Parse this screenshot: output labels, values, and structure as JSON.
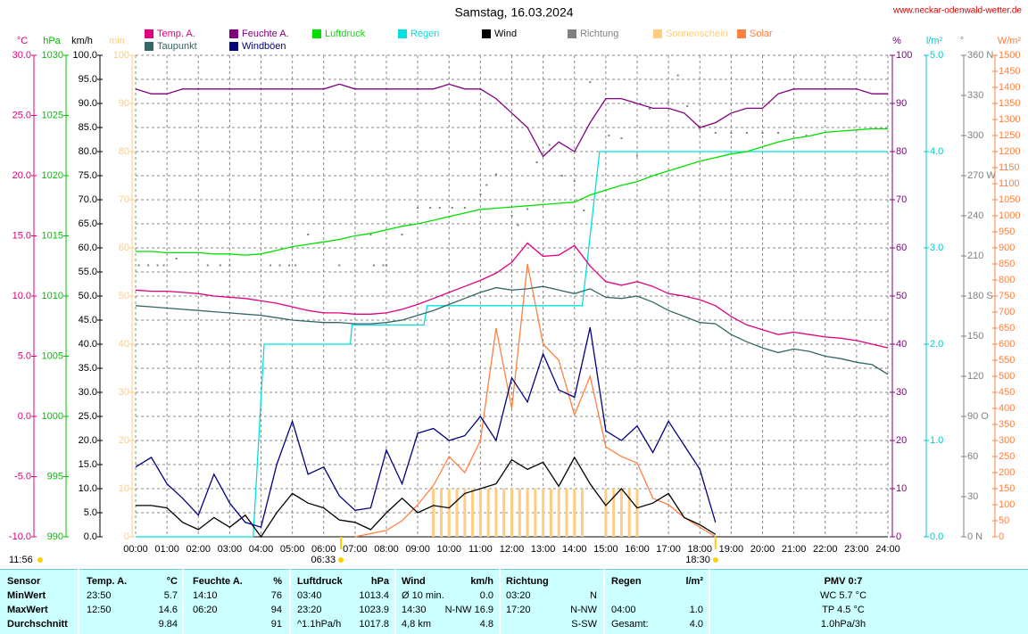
{
  "chart_data": {
    "type": "line",
    "title": "Samstag, 16.03.2024",
    "source": "www.neckar-odenwald-wetter.de",
    "grid": true,
    "xlim": [
      0,
      24
    ],
    "xticks": [
      {
        "value": 0,
        "label": "00:00"
      },
      {
        "value": 1,
        "label": "01:00"
      },
      {
        "value": 2,
        "label": "02:00"
      },
      {
        "value": 3,
        "label": "03:00"
      },
      {
        "value": 4,
        "label": "04:00"
      },
      {
        "value": 5,
        "label": "05:00"
      },
      {
        "value": 6,
        "label": "06:00"
      },
      {
        "value": 7,
        "label": "07:00"
      },
      {
        "value": 8,
        "label": "08:00"
      },
      {
        "value": 9,
        "label": "09:00"
      },
      {
        "value": 10,
        "label": "10:00"
      },
      {
        "value": 11,
        "label": "11:00"
      },
      {
        "value": 12,
        "label": "12:00"
      },
      {
        "value": 13,
        "label": "13:00"
      },
      {
        "value": 14,
        "label": "14:00"
      },
      {
        "value": 15,
        "label": "15:00"
      },
      {
        "value": 16,
        "label": "16:00"
      },
      {
        "value": 17,
        "label": "17:00"
      },
      {
        "value": 18,
        "label": "18:00"
      },
      {
        "value": 19,
        "label": "19:00"
      },
      {
        "value": 20,
        "label": "20:00"
      },
      {
        "value": 21,
        "label": "21:00"
      },
      {
        "value": 22,
        "label": "22:00"
      },
      {
        "value": 23,
        "label": "23:00"
      },
      {
        "value": 24,
        "label": "24:00"
      }
    ],
    "annotations": [
      {
        "label": "06:33",
        "x": 6.55
      },
      {
        "label": "18:30",
        "x": 18.5
      },
      {
        "label": "11:56"
      }
    ],
    "axes": [
      {
        "label": "°C",
        "color": "#e0007f",
        "lim": [
          -10,
          30
        ],
        "ticks": [
          {
            "value": -10,
            "label": "-10.0"
          },
          {
            "value": -5,
            "label": "-5.0"
          },
          {
            "value": 0,
            "label": "0.0"
          },
          {
            "value": 5,
            "label": "5.0"
          },
          {
            "value": 10,
            "label": "10.0"
          },
          {
            "value": 15,
            "label": "15.0"
          },
          {
            "value": 20,
            "label": "20.0"
          },
          {
            "value": 25,
            "label": "25.0"
          },
          {
            "value": 30,
            "label": "30.0"
          }
        ]
      },
      {
        "label": "hPa",
        "color": "#00c000",
        "lim": [
          990,
          1030
        ],
        "ticks": [
          990,
          995,
          1000,
          1005,
          1010,
          1015,
          1020,
          1025,
          1030
        ]
      },
      {
        "label": "km/h",
        "color": "#000000",
        "grid": true,
        "lim": [
          0,
          100
        ],
        "ticks": [
          {
            "value": 0,
            "label": "0.0"
          },
          {
            "value": 5,
            "label": "5.0"
          },
          {
            "value": 10,
            "label": "10.0"
          },
          {
            "value": 15,
            "label": "15.0"
          },
          {
            "value": 20,
            "label": "20.0"
          },
          {
            "value": 25,
            "label": "25.0"
          },
          {
            "value": 30,
            "label": "30.0"
          },
          {
            "value": 35,
            "label": "35.0"
          },
          {
            "value": 40,
            "label": "40.0"
          },
          {
            "value": 45,
            "label": "45.0"
          },
          {
            "value": 50,
            "label": "50.0"
          },
          {
            "value": 55,
            "label": "55.0"
          },
          {
            "value": 60,
            "label": "60.0"
          },
          {
            "value": 65,
            "label": "65.0"
          },
          {
            "value": 70,
            "label": "70.0"
          },
          {
            "value": 75,
            "label": "75.0"
          },
          {
            "value": 80,
            "label": "80.0"
          },
          {
            "value": 85,
            "label": "85.0"
          },
          {
            "value": 90,
            "label": "90.0"
          },
          {
            "value": 95,
            "label": "95.0"
          },
          {
            "value": 100,
            "label": "100.0"
          }
        ]
      },
      {
        "label": "min",
        "color": "#ffcc80",
        "lim": [
          0,
          100
        ],
        "ticks": [
          0,
          10,
          20,
          30,
          40,
          50,
          60,
          70,
          80,
          90,
          100
        ]
      },
      {
        "label": "%",
        "color": "#800080",
        "lim": [
          0,
          100
        ],
        "ticks": [
          0,
          10,
          20,
          30,
          40,
          50,
          60,
          70,
          80,
          90,
          100
        ]
      },
      {
        "label": "l/m²",
        "color": "#00cccc",
        "lim": [
          0,
          5
        ],
        "ticks": [
          {
            "value": 0,
            "label": "0.0"
          },
          {
            "value": 1,
            "label": "1.0"
          },
          {
            "value": 2,
            "label": "2.0"
          },
          {
            "value": 3,
            "label": "3.0"
          },
          {
            "value": 4,
            "label": "4.0"
          },
          {
            "value": 5,
            "label": "5.0"
          }
        ]
      },
      {
        "label": "°",
        "color": "#808080",
        "lim": [
          0,
          360
        ],
        "ticks": [
          {
            "value": 0,
            "label": "0 N"
          },
          30,
          60,
          {
            "value": 90,
            "label": "90 O"
          },
          120,
          150,
          {
            "value": 180,
            "label": "180 S"
          },
          210,
          240,
          {
            "value": 270,
            "label": "270 W"
          },
          300,
          330,
          {
            "value": 360,
            "label": "360 N"
          }
        ]
      },
      {
        "label": "W/m²",
        "color": "#ff8040",
        "lim": [
          0,
          1500
        ],
        "ticks": [
          0,
          50,
          100,
          150,
          200,
          250,
          300,
          350,
          400,
          450,
          500,
          550,
          600,
          650,
          700,
          750,
          800,
          850,
          900,
          950,
          1000,
          1050,
          1100,
          1150,
          1200,
          1250,
          1300,
          1350,
          1400,
          1450,
          1500
        ]
      }
    ],
    "x": [
      0,
      0.5,
      1,
      1.5,
      2,
      2.5,
      3,
      3.5,
      4,
      4.5,
      5,
      5.5,
      6,
      6.5,
      7,
      7.5,
      8,
      8.5,
      9,
      9.5,
      10,
      10.5,
      11,
      11.5,
      12,
      12.5,
      13,
      13.5,
      14,
      14.5,
      15,
      15.5,
      16,
      16.5,
      17,
      17.5,
      18,
      18.5,
      19,
      19.5,
      20,
      20.5,
      21,
      21.5,
      22,
      22.5,
      23,
      23.5,
      24
    ],
    "series": [
      {
        "name": "Temp. A.",
        "color": "#e0007f",
        "axis": 0,
        "kind": "line",
        "values": [
          10.5,
          10.4,
          10.4,
          10.3,
          10.2,
          10.0,
          9.9,
          9.8,
          9.6,
          9.4,
          9.1,
          8.8,
          8.6,
          8.6,
          8.5,
          8.5,
          8.6,
          8.9,
          9.3,
          9.8,
          10.3,
          10.8,
          11.3,
          11.9,
          12.8,
          14.4,
          13.3,
          13.4,
          14.2,
          12.5,
          11.2,
          10.9,
          11.2,
          10.8,
          10.2,
          10.0,
          9.7,
          9.2,
          8.3,
          7.6,
          7.2,
          6.8,
          7.0,
          6.8,
          6.6,
          6.5,
          6.3,
          6.0,
          5.7
        ]
      },
      {
        "name": "Feuchte A.",
        "color": "#800080",
        "axis": 4,
        "kind": "line",
        "values": [
          93,
          92,
          92,
          93,
          93,
          93,
          93,
          93,
          93,
          93,
          93,
          93,
          93,
          94,
          93,
          93,
          93,
          93,
          93,
          93,
          94,
          93,
          93,
          91,
          88,
          85,
          79,
          82,
          80,
          86,
          91,
          91,
          90,
          89,
          89,
          88,
          85,
          86,
          88,
          89,
          89,
          92,
          93,
          93,
          93,
          93,
          93,
          92,
          92
        ]
      },
      {
        "name": "Luftdruck",
        "color": "#00e000",
        "axis": 1,
        "kind": "line",
        "values": [
          1013.7,
          1013.7,
          1013.6,
          1013.6,
          1013.6,
          1013.5,
          1013.5,
          1013.4,
          1013.5,
          1013.8,
          1014.1,
          1014.3,
          1014.5,
          1014.7,
          1015.0,
          1015.2,
          1015.5,
          1015.8,
          1016.0,
          1016.3,
          1016.6,
          1016.9,
          1017.2,
          1017.3,
          1017.4,
          1017.5,
          1017.6,
          1017.7,
          1017.8,
          1018.4,
          1018.8,
          1019.2,
          1019.5,
          1020.0,
          1020.4,
          1020.8,
          1021.2,
          1021.5,
          1021.8,
          1022.0,
          1022.4,
          1022.8,
          1023.1,
          1023.3,
          1023.6,
          1023.7,
          1023.8,
          1023.9,
          1023.9
        ]
      },
      {
        "name": "Regen",
        "color": "#00e0e0",
        "axis": 5,
        "kind": "line",
        "x": [
          0,
          3.75,
          4.1,
          6.85,
          6.9,
          9.2,
          9.3,
          14.25,
          14.8,
          24
        ],
        "values": [
          0,
          0,
          2.0,
          2.0,
          2.2,
          2.2,
          2.4,
          2.4,
          4.0,
          4.0
        ]
      },
      {
        "name": "Wind",
        "color": "#000000",
        "axis": 2,
        "kind": "line",
        "values": [
          6.5,
          6.5,
          6.0,
          3.0,
          1.5,
          4.0,
          2.0,
          4.5,
          0,
          5.0,
          9.0,
          7.0,
          6.0,
          3.5,
          3.0,
          1.5,
          5.0,
          8.0,
          5.0,
          6.5,
          6.0,
          9.0,
          10.0,
          11.0,
          16.0,
          14.0,
          15.5,
          10.5,
          16.5,
          11.0,
          6.5,
          10.0,
          6.0,
          7.0,
          9.0,
          4.0,
          2.5,
          0.5,
          null,
          null,
          null,
          null,
          null,
          null,
          null,
          null,
          null,
          null,
          null
        ]
      },
      {
        "name": "Richtung",
        "color": "#808080",
        "axis": 6,
        "kind": "dots",
        "x": [
          0.1,
          0.4,
          0.7,
          0.9,
          1.3,
          2.3,
          2.7,
          3.0,
          4.3,
          4.6,
          4.9,
          5.1,
          5.5,
          6.5,
          7.5,
          7.6,
          7.9,
          8.0,
          8.5,
          9.0,
          9.4,
          9.7,
          10.1,
          10.5,
          11.0,
          11.2,
          11.5,
          12.0,
          12.2,
          12.5,
          12.8,
          13.2,
          13.6,
          14.0,
          14.3,
          14.5,
          15.1,
          15.5,
          16.0,
          16.4,
          17.0,
          17.3,
          17.6,
          18.0,
          18.5,
          19.0,
          19.5,
          20.0,
          20.5,
          21.0,
          21.4
        ],
        "values": [
          203,
          203,
          203,
          203,
          208,
          203,
          203,
          203,
          203,
          203,
          203,
          203,
          226,
          203,
          226,
          203,
          203,
          203,
          226,
          246,
          246,
          246,
          246,
          246,
          256,
          263,
          271,
          240,
          233,
          245,
          280,
          293,
          270,
          266,
          244,
          340,
          300,
          298,
          285,
          320,
          325,
          345,
          322,
          305,
          302,
          302,
          302,
          302,
          302,
          302,
          300
        ]
      },
      {
        "name": "Sonnenschein",
        "color": "#ffcc80",
        "axis": 3,
        "kind": "bars",
        "x": [
          9.5,
          9.75,
          10,
          10.25,
          10.5,
          10.75,
          11,
          11.25,
          11.5,
          11.75,
          12,
          12.25,
          12.5,
          12.75,
          13,
          13.25,
          13.5,
          13.75,
          14,
          14.25,
          15,
          15.25,
          15.5,
          15.75,
          16
        ],
        "values": [
          10,
          10,
          10,
          10,
          10,
          10,
          10,
          10,
          10,
          10,
          10,
          10,
          10,
          10,
          10,
          10,
          10,
          10,
          10,
          10,
          10,
          10,
          10,
          10,
          10
        ]
      },
      {
        "name": "Solar",
        "color": "#ff8040",
        "axis": 7,
        "kind": "line",
        "values": [
          null,
          null,
          null,
          null,
          null,
          null,
          null,
          null,
          null,
          null,
          null,
          null,
          null,
          null,
          0,
          10,
          20,
          50,
          100,
          160,
          250,
          200,
          300,
          650,
          400,
          850,
          600,
          550,
          380,
          500,
          280,
          250,
          230,
          120,
          100,
          60,
          30,
          0,
          null,
          null,
          null,
          null,
          null,
          null,
          null,
          null,
          null,
          null,
          null
        ]
      },
      {
        "name": "Taupunkt",
        "color": "#336666",
        "axis": 0,
        "kind": "line",
        "values": [
          9.2,
          9.1,
          9.0,
          8.9,
          8.8,
          8.7,
          8.6,
          8.5,
          8.4,
          8.2,
          8.0,
          7.9,
          7.8,
          7.8,
          7.7,
          7.7,
          7.8,
          8.0,
          8.4,
          8.8,
          9.3,
          9.8,
          10.3,
          10.7,
          10.5,
          10.6,
          10.8,
          10.5,
          10.2,
          10.6,
          9.9,
          9.8,
          10.0,
          9.5,
          8.8,
          8.3,
          7.8,
          7.7,
          6.8,
          6.2,
          5.7,
          5.3,
          5.6,
          5.4,
          5.0,
          4.8,
          4.5,
          4.3,
          3.5
        ]
      },
      {
        "name": "Windböen",
        "color": "#000080",
        "axis": 2,
        "kind": "line",
        "values": [
          14.5,
          16.5,
          11.0,
          8.0,
          4.5,
          13.0,
          7.0,
          3.0,
          2.0,
          15.0,
          24.0,
          13.0,
          14.5,
          8.5,
          5.5,
          6.0,
          18.0,
          11.0,
          21.5,
          22.5,
          20.0,
          21.0,
          25.0,
          20.0,
          33.0,
          28.0,
          38.0,
          30.5,
          29.0,
          43.5,
          22.0,
          20.0,
          23.0,
          17.5,
          24.0,
          19.0,
          14.0,
          3.0,
          null,
          null,
          null,
          null,
          null,
          null,
          null,
          null,
          null,
          null,
          null
        ]
      }
    ]
  },
  "table": {
    "header": [
      "Sensor",
      "Temp. A.",
      "°C",
      "Feuchte A.",
      "%",
      "Luftdruck",
      "hPa",
      "Wind",
      "km/h",
      "Richtung",
      null,
      "Regen",
      "l/m²",
      "PMV 0:7"
    ],
    "rows": [
      [
        "MinWert",
        "23:50",
        "5.7",
        "14:10",
        "76",
        "03:40",
        "1013.4",
        "Ø 10 min.",
        "0.0",
        "03:20",
        "N",
        null,
        null,
        "WC 5.7 °C"
      ],
      [
        "MaxWert",
        "12:50",
        "14.6",
        "06:20",
        "94",
        "23:20",
        "1023.9",
        "14:30",
        "N-NW 16.9",
        "17:20",
        "N-NW",
        "04:00",
        "1.0",
        "TP 4.5 °C"
      ],
      [
        "Durchschnitt",
        null,
        "9.84",
        null,
        "91",
        "^1.1hPa/h",
        "1017.8",
        "4,8 km",
        "4.8",
        null,
        "S-SW",
        "Gesamt:",
        "4.0",
        "1.0hPa/3h"
      ]
    ]
  }
}
